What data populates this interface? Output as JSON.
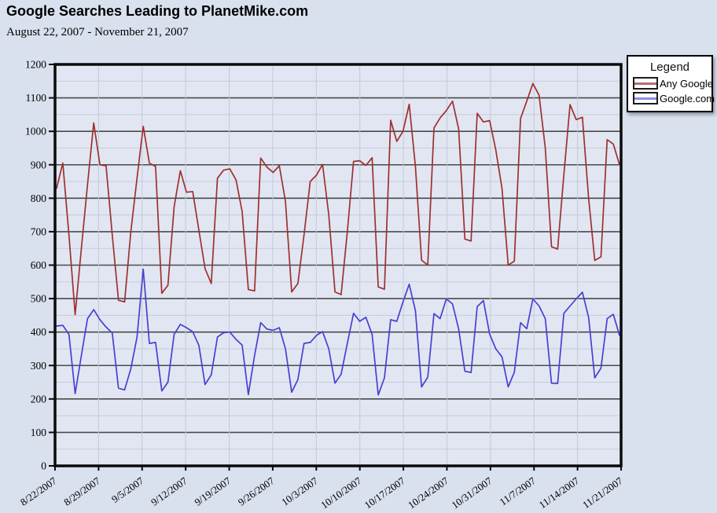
{
  "page": {
    "title": "Google Searches Leading to PlanetMike.com",
    "subtitle": "August 22, 2007 - November 21, 2007"
  },
  "legend": {
    "title": "Legend",
    "items": [
      {
        "label": "Any Google",
        "line_color": "#9e3030",
        "swatch_line": "#b56d6d"
      },
      {
        "label": "Google.com",
        "line_color": "#4740d4",
        "swatch_line": "#8d8de8"
      }
    ]
  },
  "colors": {
    "page_bg": "#d9e0ee",
    "plot_bg": "#e1e6f2",
    "grid_minor": "#c6cbd9",
    "grid_major": "#4a4a4a",
    "grid_vertical": "#c3c9d7",
    "axis": "#0b0b0b",
    "tick_text": "#000000"
  },
  "chart_data": {
    "type": "line",
    "title": "Google Searches Leading to PlanetMike.com",
    "subtitle": "August 22, 2007 - November 21, 2007",
    "x_unit": "day",
    "x_start": "8/22/2007",
    "x_end": "11/21/2007",
    "points_per_series": 92,
    "x_tick_labels": [
      "8/22/2007",
      "8/29/2007",
      "9/5/2007",
      "9/12/2007",
      "9/19/2007",
      "9/26/2007",
      "10/3/2007",
      "10/10/2007",
      "10/17/2007",
      "10/24/2007",
      "10/31/2007",
      "11/7/2007",
      "11/14/2007",
      "11/21/2007"
    ],
    "y_tick_labels": [
      "0",
      "100",
      "200",
      "300",
      "400",
      "500",
      "600",
      "700",
      "800",
      "900",
      "1000",
      "1100",
      "1200"
    ],
    "ylim": [
      0,
      1200
    ],
    "y_major_step": 100,
    "y_minor_step": 50,
    "grid": true,
    "legend_position": "top-right",
    "series": [
      {
        "name": "Any Google",
        "color": "#9e3030",
        "values": [
          830,
          905,
          690,
          452,
          650,
          840,
          1025,
          900,
          897,
          690,
          495,
          490,
          700,
          860,
          1015,
          905,
          895,
          516,
          540,
          775,
          882,
          818,
          820,
          704,
          590,
          545,
          860,
          884,
          888,
          855,
          760,
          527,
          523,
          920,
          893,
          877,
          897,
          790,
          520,
          545,
          690,
          850,
          869,
          901,
          750,
          520,
          512,
          700,
          910,
          912,
          898,
          921,
          535,
          528,
          1033,
          970,
          1000,
          1081,
          895,
          615,
          600,
          1010,
          1040,
          1062,
          1090,
          1007,
          678,
          672,
          1054,
          1028,
          1032,
          945,
          830,
          600,
          612,
          1038,
          1090,
          1143,
          1108,
          950,
          655,
          648,
          870,
          1080,
          1035,
          1042,
          800,
          614,
          625,
          975,
          962,
          900
        ]
      },
      {
        "name": "Google.com",
        "color": "#4740d4",
        "values": [
          418,
          420,
          393,
          216,
          330,
          440,
          467,
          437,
          415,
          397,
          232,
          227,
          290,
          385,
          588,
          366,
          369,
          224,
          250,
          393,
          423,
          413,
          401,
          360,
          243,
          272,
          385,
          398,
          400,
          378,
          361,
          213,
          330,
          428,
          409,
          405,
          413,
          350,
          220,
          258,
          366,
          369,
          390,
          401,
          350,
          247,
          274,
          366,
          456,
          432,
          444,
          393,
          212,
          263,
          437,
          432,
          490,
          543,
          464,
          236,
          265,
          455,
          440,
          499,
          484,
          409,
          283,
          279,
          476,
          494,
          394,
          350,
          326,
          236,
          280,
          428,
          410,
          499,
          478,
          440,
          247,
          246,
          456,
          478,
          499,
          519,
          444,
          263,
          292,
          440,
          453,
          390
        ]
      }
    ]
  }
}
